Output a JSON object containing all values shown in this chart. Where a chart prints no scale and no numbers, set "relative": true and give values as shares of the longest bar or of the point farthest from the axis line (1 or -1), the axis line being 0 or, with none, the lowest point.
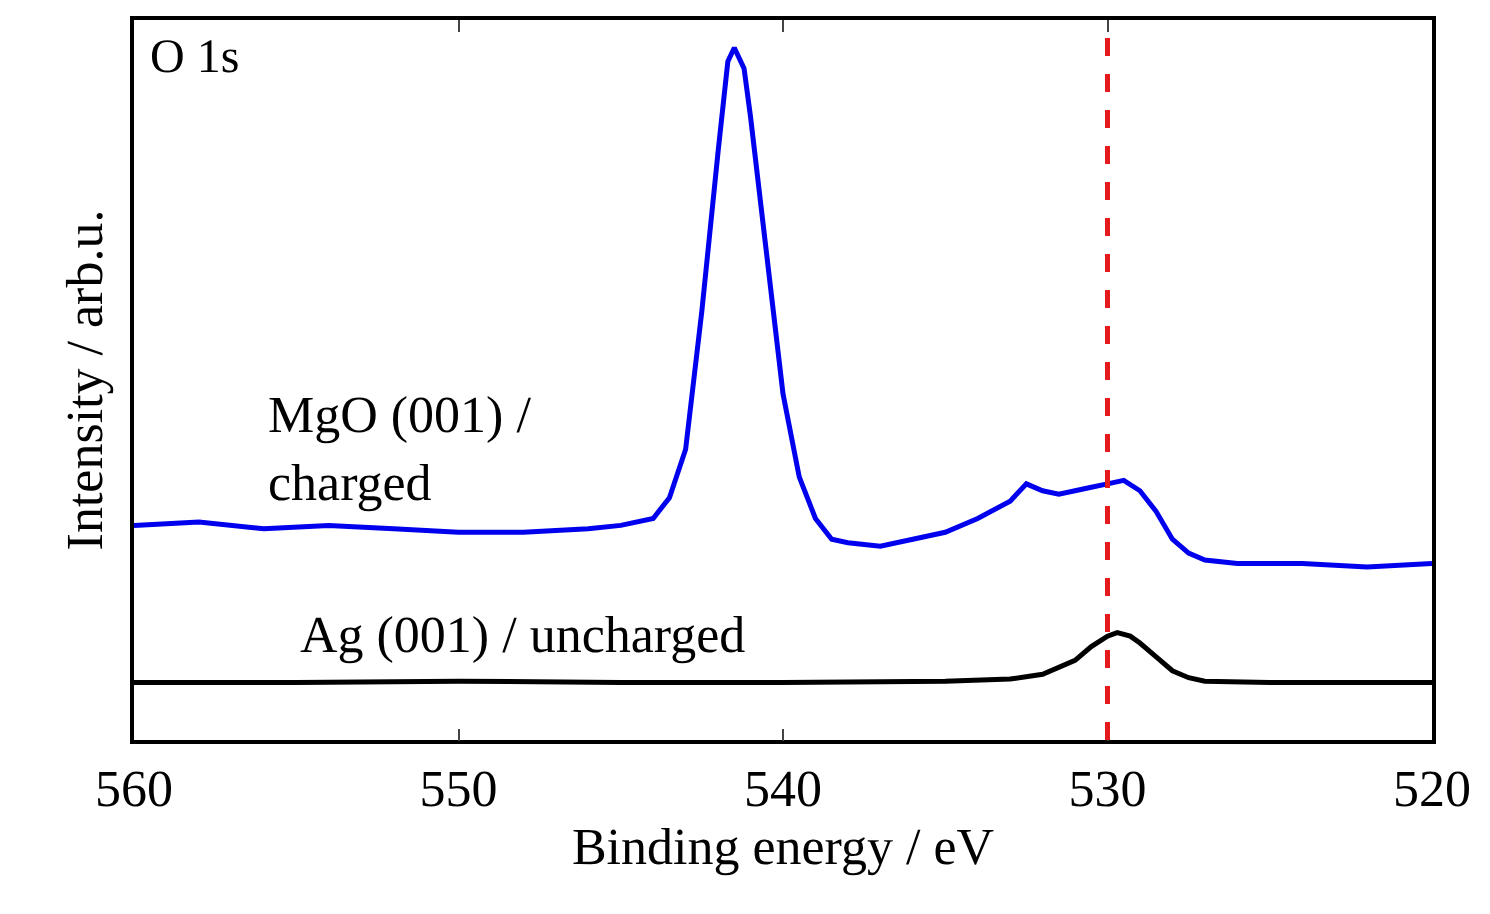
{
  "chart_data": {
    "type": "line",
    "relative": true,
    "xlabel": "Binding energy / eV",
    "ylabel": "Intensity / arb.u.",
    "annotations": [
      "O 1s"
    ],
    "xlim": [
      560,
      520
    ],
    "xticks": [
      560,
      550,
      540,
      530,
      520
    ],
    "legend": false,
    "marker": "none",
    "line_style": "solid",
    "ref_lines": [
      {
        "axis": "x",
        "value": 530,
        "color": "#e41a1c",
        "line_style": "dashed"
      }
    ],
    "series": [
      {
        "name": "MgO (001) /\ncharged",
        "color": "#0000ee",
        "x": [
          560,
          558,
          556,
          554,
          552,
          550,
          548,
          546,
          545,
          544,
          543.5,
          543,
          542.5,
          542,
          541.7,
          541.5,
          541.2,
          541,
          540.5,
          540,
          539.5,
          539,
          538.5,
          538,
          537,
          536,
          535,
          534,
          533,
          532.5,
          532,
          531.5,
          531,
          530.5,
          530,
          529.5,
          529,
          528.5,
          528,
          527.5,
          527,
          526,
          524,
          522,
          520
        ],
        "values": [
          0.31,
          0.315,
          0.305,
          0.31,
          0.305,
          0.3,
          0.3,
          0.305,
          0.31,
          0.32,
          0.35,
          0.42,
          0.62,
          0.85,
          0.98,
          1.0,
          0.97,
          0.9,
          0.7,
          0.5,
          0.38,
          0.32,
          0.29,
          0.285,
          0.28,
          0.29,
          0.3,
          0.32,
          0.345,
          0.37,
          0.36,
          0.355,
          0.36,
          0.365,
          0.37,
          0.375,
          0.36,
          0.33,
          0.29,
          0.27,
          0.26,
          0.255,
          0.255,
          0.25,
          0.255
        ]
      },
      {
        "name": "Ag (001) / uncharged",
        "color": "#000000",
        "x": [
          560,
          555,
          550,
          545,
          540,
          535,
          533,
          532,
          531,
          530.5,
          530,
          529.7,
          529.3,
          529,
          528.5,
          528,
          527.5,
          527,
          525,
          522,
          520
        ],
        "values": [
          0.083,
          0.083,
          0.085,
          0.083,
          0.083,
          0.085,
          0.088,
          0.095,
          0.115,
          0.135,
          0.15,
          0.155,
          0.15,
          0.14,
          0.12,
          0.1,
          0.09,
          0.085,
          0.083,
          0.083,
          0.083
        ]
      }
    ]
  }
}
